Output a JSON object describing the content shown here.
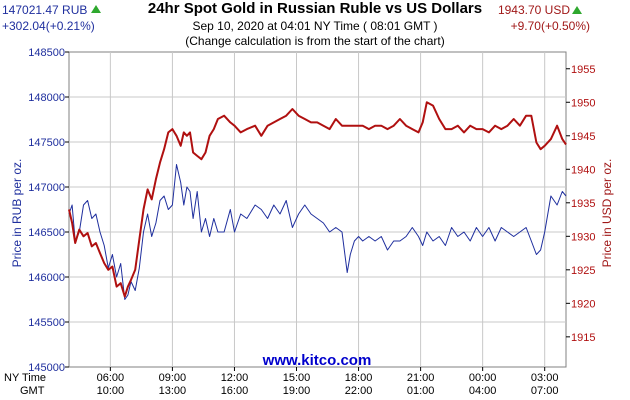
{
  "header": {
    "title": "24hr Spot Gold in Russian Ruble vs US Dollars",
    "date_line": "Sep 10, 2020 at 04:01 NY Time ( 08:01 GMT )",
    "note": "(Change calculation is from the start of the chart)",
    "rub_price": "147021.47 RUB",
    "rub_change": "+302.04(+0.21%)",
    "usd_price": "1943.70 USD",
    "usd_change": "+9.70(+0.50%)",
    "up_icon": "green-up-triangle-icon"
  },
  "labels": {
    "ny_time": "NY Time",
    "gmt": "GMT",
    "watermark": "www.kitco.com"
  },
  "colors": {
    "rub": "#1f2f9e",
    "usd": "#b01010",
    "plot_bg": "#ffffff",
    "grid": "#c8c8c8",
    "up": "#2ea82e"
  },
  "chart_data": {
    "type": "line",
    "title": "24hr Spot Gold in Russian Ruble vs US Dollars",
    "grid": true,
    "x_ticks_ny": [
      "06:00",
      "09:00",
      "12:00",
      "15:00",
      "18:00",
      "21:00",
      "00:00",
      "03:00"
    ],
    "x_ticks_gmt": [
      "10:00",
      "13:00",
      "16:00",
      "19:00",
      "22:00",
      "01:00",
      "04:00",
      "07:00"
    ],
    "x_tick_hours": [
      6,
      9,
      12,
      15,
      18,
      21,
      24,
      27
    ],
    "x_range_hours": [
      4,
      28.03
    ],
    "y_left": {
      "label": "Price in RUB per oz.",
      "ylim": [
        145000,
        148500
      ],
      "ticks": [
        "148500",
        "148000",
        "147500",
        "147000",
        "146500",
        "146000",
        "145500",
        "145000"
      ],
      "tick_values": [
        148500,
        148000,
        147500,
        147000,
        146500,
        146000,
        145500,
        145000
      ]
    },
    "y_right": {
      "label": "Price in USD per oz.",
      "ylim": [
        1910.5,
        1957.5
      ],
      "ticks": [
        "1955",
        "1950",
        "1945",
        "1940",
        "1935",
        "1930",
        "1925",
        "1920",
        "1915"
      ],
      "tick_values": [
        1955,
        1950,
        1945,
        1940,
        1935,
        1930,
        1925,
        1920,
        1915
      ]
    },
    "series": [
      {
        "name": "Price in RUB per oz.",
        "axis": "left",
        "x": [
          4.0,
          4.15,
          4.3,
          4.5,
          4.7,
          4.9,
          5.1,
          5.3,
          5.5,
          5.7,
          5.9,
          6.1,
          6.3,
          6.5,
          6.7,
          6.85,
          7.0,
          7.2,
          7.4,
          7.6,
          7.8,
          8.0,
          8.2,
          8.4,
          8.6,
          8.8,
          9.0,
          9.2,
          9.4,
          9.55,
          9.7,
          9.85,
          10.0,
          10.2,
          10.4,
          10.6,
          10.8,
          11.0,
          11.2,
          11.5,
          11.8,
          12.0,
          12.3,
          12.6,
          13.0,
          13.3,
          13.6,
          13.9,
          14.2,
          14.5,
          14.8,
          15.1,
          15.4,
          15.7,
          16.0,
          16.3,
          16.6,
          16.9,
          17.2,
          17.45,
          17.6,
          17.8,
          18.0,
          18.2,
          18.5,
          18.8,
          19.1,
          19.4,
          19.7,
          20.0,
          20.3,
          20.6,
          20.9,
          21.1,
          21.3,
          21.6,
          21.9,
          22.2,
          22.5,
          22.8,
          23.1,
          23.4,
          23.7,
          24.0,
          24.3,
          24.6,
          24.9,
          25.2,
          25.5,
          25.8,
          26.1,
          26.35,
          26.6,
          26.8,
          27.0,
          27.3,
          27.6,
          27.85,
          28.03
        ],
        "y": [
          146700,
          146800,
          146400,
          146500,
          146800,
          146850,
          146650,
          146700,
          146500,
          146350,
          146100,
          146250,
          146000,
          146150,
          145750,
          145800,
          145950,
          145850,
          146100,
          146500,
          146700,
          146450,
          146600,
          146850,
          146900,
          146750,
          146800,
          147250,
          147050,
          146800,
          147000,
          146950,
          146650,
          146950,
          146500,
          146650,
          146450,
          146650,
          146500,
          146500,
          146750,
          146500,
          146700,
          146650,
          146800,
          146750,
          146650,
          146800,
          146700,
          146850,
          146550,
          146700,
          146800,
          146700,
          146650,
          146600,
          146500,
          146550,
          146500,
          146050,
          146250,
          146400,
          146450,
          146400,
          146450,
          146400,
          146450,
          146300,
          146400,
          146400,
          146450,
          146550,
          146450,
          146350,
          146500,
          146400,
          146450,
          146350,
          146550,
          146450,
          146500,
          146400,
          146550,
          146450,
          146550,
          146400,
          146550,
          146500,
          146450,
          146500,
          146550,
          146400,
          146250,
          146300,
          146500,
          146900,
          146800,
          146950,
          146900
        ]
      },
      {
        "name": "Price in USD per oz.",
        "axis": "right",
        "x": [
          4.0,
          4.15,
          4.3,
          4.5,
          4.7,
          4.9,
          5.1,
          5.3,
          5.5,
          5.7,
          5.9,
          6.1,
          6.3,
          6.5,
          6.7,
          6.85,
          7.0,
          7.2,
          7.4,
          7.6,
          7.8,
          8.0,
          8.2,
          8.4,
          8.6,
          8.8,
          9.0,
          9.2,
          9.4,
          9.55,
          9.7,
          9.85,
          10.0,
          10.2,
          10.4,
          10.6,
          10.8,
          11.0,
          11.2,
          11.5,
          11.8,
          12.0,
          12.3,
          12.6,
          13.0,
          13.3,
          13.6,
          13.9,
          14.2,
          14.5,
          14.8,
          15.1,
          15.4,
          15.7,
          16.0,
          16.3,
          16.6,
          16.9,
          17.2,
          17.45,
          17.6,
          17.8,
          18.0,
          18.2,
          18.5,
          18.8,
          19.1,
          19.4,
          19.7,
          20.0,
          20.3,
          20.6,
          20.9,
          21.1,
          21.3,
          21.6,
          21.9,
          22.2,
          22.5,
          22.8,
          23.1,
          23.4,
          23.7,
          24.0,
          24.3,
          24.6,
          24.9,
          25.2,
          25.5,
          25.8,
          26.1,
          26.35,
          26.6,
          26.8,
          27.0,
          27.3,
          27.6,
          27.85,
          28.03
        ],
        "y": [
          1934.0,
          1932.0,
          1929.0,
          1931.0,
          1930.0,
          1930.5,
          1928.5,
          1929.0,
          1927.5,
          1926.0,
          1925.0,
          1925.5,
          1922.5,
          1923.0,
          1921.0,
          1922.5,
          1923.5,
          1925.0,
          1929.5,
          1934.0,
          1937.0,
          1935.5,
          1938.5,
          1941.0,
          1943.0,
          1945.5,
          1946.0,
          1945.0,
          1943.5,
          1945.5,
          1945.0,
          1945.5,
          1942.5,
          1942.0,
          1941.5,
          1942.5,
          1945.0,
          1946.0,
          1947.5,
          1948.0,
          1947.0,
          1946.5,
          1945.5,
          1946.0,
          1946.5,
          1945.0,
          1946.5,
          1947.0,
          1947.5,
          1948.0,
          1949.0,
          1948.0,
          1947.5,
          1947.0,
          1947.0,
          1946.5,
          1946.0,
          1947.5,
          1946.5,
          1946.5,
          1946.5,
          1946.5,
          1946.5,
          1946.5,
          1946.0,
          1946.5,
          1946.5,
          1946.0,
          1946.5,
          1947.5,
          1946.5,
          1946.0,
          1945.5,
          1947.0,
          1950.0,
          1949.5,
          1947.5,
          1946.0,
          1946.0,
          1946.5,
          1945.5,
          1946.5,
          1946.0,
          1946.0,
          1945.5,
          1946.5,
          1946.0,
          1946.5,
          1947.5,
          1946.5,
          1948.0,
          1948.0,
          1944.0,
          1943.0,
          1943.5,
          1944.5,
          1946.5,
          1944.5,
          1943.7
        ]
      }
    ]
  }
}
